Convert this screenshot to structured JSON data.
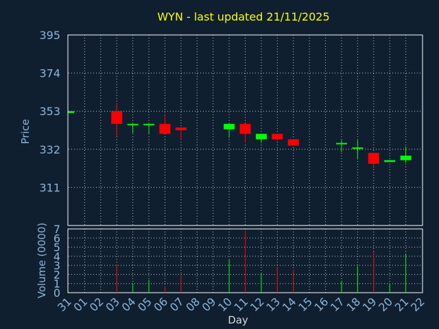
{
  "chart_data": {
    "type": "candlestick",
    "title": "WYN - last updated 21/11/2025",
    "ylabel": "Price",
    "volume_ylabel": "Volume (0000)",
    "xlabel": "Day",
    "price_ticks": [
      "395",
      "374",
      "353",
      "332",
      "311"
    ],
    "price_ylim": [
      290,
      395
    ],
    "volume_ticks": [
      "0",
      "1",
      "2",
      "3",
      "4",
      "5",
      "6",
      "7"
    ],
    "volume_ylim": [
      0,
      7
    ],
    "x_ticks": [
      "31",
      "01",
      "02",
      "03",
      "04",
      "05",
      "06",
      "07",
      "08",
      "09",
      "10",
      "11",
      "12",
      "13",
      "14",
      "15",
      "16",
      "17",
      "18",
      "19",
      "20",
      "21",
      "22"
    ],
    "colors": {
      "up": "#00ff00",
      "down": "#ff0000"
    },
    "candles": [
      {
        "day": "31",
        "open": 352,
        "high": 353,
        "low": 352,
        "close": 353,
        "volume": 0.1
      },
      {
        "day": "03",
        "open": 353,
        "high": 357.5,
        "low": 339,
        "close": 346,
        "volume": 3.1
      },
      {
        "day": "04",
        "open": 345.5,
        "high": 346,
        "low": 341,
        "close": 346,
        "volume": 1.0
      },
      {
        "day": "05",
        "open": 345.5,
        "high": 346,
        "low": 340.5,
        "close": 346,
        "volume": 1.4
      },
      {
        "day": "06",
        "open": 346,
        "high": 351,
        "low": 340.5,
        "close": 340.5,
        "volume": 0.7
      },
      {
        "day": "07",
        "open": 344,
        "high": 344,
        "low": 337,
        "close": 342.5,
        "volume": 1.9
      },
      {
        "day": "10",
        "open": 343,
        "high": 346,
        "low": 338.5,
        "close": 346,
        "volume": 3.6
      },
      {
        "day": "11",
        "open": 346,
        "high": 346,
        "low": 335.5,
        "close": 340.5,
        "volume": 6.8
      },
      {
        "day": "12",
        "open": 337.5,
        "high": 340.5,
        "low": 335.5,
        "close": 340.5,
        "volume": 2.2
      },
      {
        "day": "13",
        "open": 340.5,
        "high": 340.5,
        "low": 336.5,
        "close": 337.5,
        "volume": 2.8
      },
      {
        "day": "14",
        "open": 337.5,
        "high": 337.5,
        "low": 334,
        "close": 334,
        "volume": 2.5
      },
      {
        "day": "17",
        "open": 335,
        "high": 337,
        "low": 330.5,
        "close": 335.5,
        "volume": 1.3
      },
      {
        "day": "18",
        "open": 332.5,
        "high": 337,
        "low": 326.5,
        "close": 333,
        "volume": 2.9
      },
      {
        "day": "19",
        "open": 330,
        "high": 330,
        "low": 321.5,
        "close": 324,
        "volume": 4.5
      },
      {
        "day": "20",
        "open": 325,
        "high": 326,
        "low": 325,
        "close": 326,
        "volume": 1.0
      },
      {
        "day": "21",
        "open": 326,
        "high": 333.5,
        "low": 324.5,
        "close": 328.5,
        "volume": 4.3
      }
    ]
  }
}
